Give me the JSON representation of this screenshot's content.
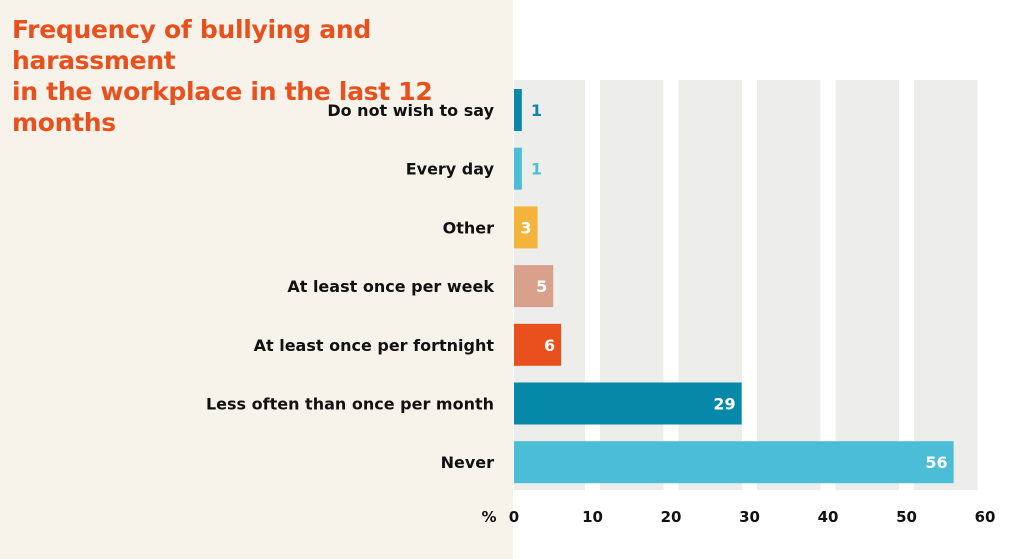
{
  "chart_data": {
    "type": "bar",
    "orientation": "horizontal",
    "title": [
      "Frequency of bullying and harassment",
      "in the workplace in the last 12 months"
    ],
    "unit_label": "%",
    "categories": [
      "Do not wish to say",
      "Every day",
      "Other",
      "At least once per week",
      "At least once per fortnight",
      "Less often than once per month",
      "Never"
    ],
    "values": [
      1,
      1,
      3,
      5,
      6,
      29,
      56
    ],
    "colors": [
      "#0b87a8",
      "#4bbdd6",
      "#f6b33c",
      "#d9a08c",
      "#e8501e",
      "#0689a8",
      "#4bbdd6"
    ],
    "xlim": [
      0,
      60
    ],
    "xticks": [
      0,
      10,
      20,
      30,
      40,
      50,
      60
    ],
    "grid": true,
    "background": {
      "panel": "#f7f3ea",
      "stripe": "#ededec",
      "title_color": "#e8501e"
    }
  }
}
